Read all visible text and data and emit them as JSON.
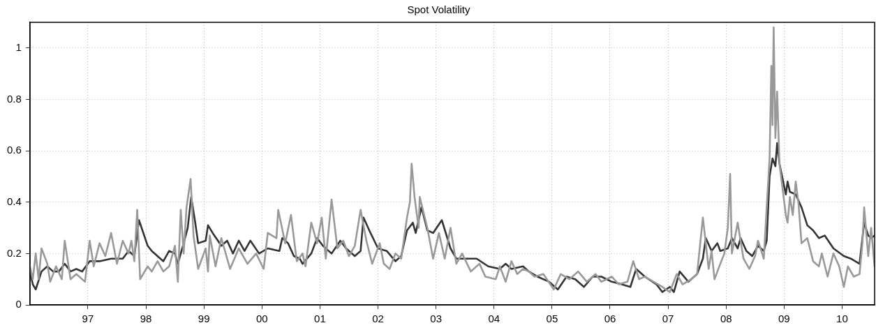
{
  "chart_data": {
    "type": "line",
    "title": "Spot Volatility",
    "xlim": [
      1996.0,
      2010.56
    ],
    "xticks": [
      {
        "value": 1997,
        "label": "97"
      },
      {
        "value": 1998,
        "label": "98"
      },
      {
        "value": 1999,
        "label": "99"
      },
      {
        "value": 2000,
        "label": "00"
      },
      {
        "value": 2001,
        "label": "01"
      },
      {
        "value": 2002,
        "label": "02"
      },
      {
        "value": 2003,
        "label": "03"
      },
      {
        "value": 2004,
        "label": "04"
      },
      {
        "value": 2005,
        "label": "05"
      },
      {
        "value": 2006,
        "label": "06"
      },
      {
        "value": 2007,
        "label": "07"
      },
      {
        "value": 2008,
        "label": "08"
      },
      {
        "value": 2009,
        "label": "09"
      },
      {
        "value": 2010,
        "label": "10"
      }
    ],
    "ylim": [
      0,
      1.1
    ],
    "yticks": [
      0,
      0.2,
      0.4,
      0.6,
      0.8,
      1
    ],
    "grid": true,
    "legend": false,
    "marker": "none",
    "line_style": "solid",
    "series": [
      {
        "color": "#999999",
        "x": [
          1996.0,
          1996.05,
          1996.1,
          1996.15,
          1996.2,
          1996.3,
          1996.35,
          1996.45,
          1996.55,
          1996.6,
          1996.7,
          1996.8,
          1996.95,
          1997.03,
          1997.1,
          1997.2,
          1997.3,
          1997.4,
          1997.5,
          1997.6,
          1997.7,
          1997.75,
          1997.8,
          1997.85,
          1997.9,
          1998.03,
          1998.1,
          1998.2,
          1998.3,
          1998.4,
          1998.5,
          1998.55,
          1998.6,
          1998.65,
          1998.7,
          1998.77,
          1998.82,
          1998.9,
          1999.03,
          1999.07,
          1999.1,
          1999.2,
          1999.3,
          1999.45,
          1999.6,
          1999.75,
          1999.9,
          2000.03,
          2000.1,
          2000.25,
          2000.28,
          2000.4,
          2000.5,
          2000.6,
          2000.7,
          2000.75,
          2000.85,
          2000.95,
          2001.03,
          2001.1,
          2001.2,
          2001.3,
          2001.4,
          2001.5,
          2001.6,
          2001.7,
          2001.8,
          2001.9,
          2002.03,
          2002.1,
          2002.2,
          2002.3,
          2002.4,
          2002.5,
          2002.55,
          2002.58,
          2002.63,
          2002.7,
          2002.72,
          2002.85,
          2002.95,
          2003.05,
          2003.15,
          2003.25,
          2003.35,
          2003.45,
          2003.6,
          2003.75,
          2003.85,
          2004.03,
          2004.1,
          2004.2,
          2004.3,
          2004.4,
          2004.5,
          2004.6,
          2004.7,
          2004.85,
          2005.03,
          2005.15,
          2005.3,
          2005.45,
          2005.6,
          2005.75,
          2005.85,
          2006.03,
          2006.15,
          2006.3,
          2006.4,
          2006.5,
          2006.6,
          2006.75,
          2006.9,
          2007.03,
          2007.15,
          2007.25,
          2007.4,
          2007.5,
          2007.6,
          2007.7,
          2007.75,
          2007.8,
          2007.9,
          2007.97,
          2008.03,
          2008.07,
          2008.1,
          2008.2,
          2008.3,
          2008.4,
          2008.5,
          2008.55,
          2008.65,
          2008.7,
          2008.75,
          2008.78,
          2008.8,
          2008.82,
          2008.85,
          2008.88,
          2008.92,
          2009.03,
          2009.06,
          2009.1,
          2009.15,
          2009.2,
          2009.25,
          2009.3,
          2009.4,
          2009.5,
          2009.6,
          2009.65,
          2009.75,
          2009.85,
          2009.95,
          2010.03,
          2010.1,
          2010.2,
          2010.3,
          2010.35,
          2010.38,
          2010.45,
          2010.5,
          2010.56
        ],
        "values": [
          0.15,
          0.1,
          0.2,
          0.1,
          0.22,
          0.16,
          0.09,
          0.15,
          0.1,
          0.25,
          0.1,
          0.12,
          0.09,
          0.25,
          0.15,
          0.24,
          0.19,
          0.28,
          0.16,
          0.25,
          0.2,
          0.25,
          0.17,
          0.37,
          0.1,
          0.15,
          0.13,
          0.17,
          0.13,
          0.15,
          0.23,
          0.09,
          0.37,
          0.2,
          0.38,
          0.49,
          0.27,
          0.14,
          0.22,
          0.13,
          0.27,
          0.15,
          0.26,
          0.14,
          0.22,
          0.16,
          0.2,
          0.14,
          0.28,
          0.26,
          0.37,
          0.24,
          0.35,
          0.17,
          0.2,
          0.15,
          0.32,
          0.24,
          0.34,
          0.18,
          0.41,
          0.22,
          0.25,
          0.19,
          0.23,
          0.37,
          0.25,
          0.16,
          0.24,
          0.16,
          0.14,
          0.2,
          0.18,
          0.34,
          0.4,
          0.55,
          0.42,
          0.3,
          0.42,
          0.3,
          0.18,
          0.28,
          0.18,
          0.3,
          0.16,
          0.2,
          0.13,
          0.16,
          0.11,
          0.1,
          0.15,
          0.09,
          0.17,
          0.12,
          0.14,
          0.13,
          0.11,
          0.12,
          0.06,
          0.12,
          0.1,
          0.13,
          0.09,
          0.12,
          0.09,
          0.11,
          0.08,
          0.09,
          0.17,
          0.1,
          0.11,
          0.09,
          0.07,
          0.05,
          0.12,
          0.08,
          0.1,
          0.12,
          0.34,
          0.14,
          0.21,
          0.1,
          0.16,
          0.2,
          0.3,
          0.51,
          0.2,
          0.32,
          0.18,
          0.14,
          0.19,
          0.25,
          0.18,
          0.38,
          0.57,
          0.93,
          0.7,
          1.08,
          0.65,
          0.83,
          0.55,
          0.35,
          0.32,
          0.42,
          0.35,
          0.48,
          0.39,
          0.24,
          0.26,
          0.17,
          0.15,
          0.2,
          0.11,
          0.2,
          0.15,
          0.07,
          0.15,
          0.11,
          0.12,
          0.24,
          0.38,
          0.19,
          0.3,
          0.15
        ]
      },
      {
        "color": "#333333",
        "x": [
          1996.0,
          1996.05,
          1996.1,
          1996.2,
          1996.3,
          1996.4,
          1996.5,
          1996.6,
          1996.7,
          1996.8,
          1996.9,
          1997.03,
          1997.2,
          1997.4,
          1997.6,
          1997.7,
          1997.8,
          1997.88,
          1998.03,
          1998.1,
          1998.3,
          1998.4,
          1998.5,
          1998.55,
          1998.65,
          1998.72,
          1998.78,
          1998.85,
          1998.9,
          1999.03,
          1999.07,
          1999.15,
          1999.3,
          1999.4,
          1999.5,
          1999.6,
          1999.7,
          1999.8,
          1999.95,
          2000.1,
          2000.3,
          2000.35,
          2000.45,
          2000.55,
          2000.65,
          2000.7,
          2000.85,
          2000.95,
          2001.05,
          2001.2,
          2001.35,
          2001.45,
          2001.6,
          2001.7,
          2001.75,
          2001.85,
          2002.0,
          2002.15,
          2002.3,
          2002.4,
          2002.5,
          2002.6,
          2002.65,
          2002.75,
          2002.85,
          2002.95,
          2003.1,
          2003.25,
          2003.35,
          2003.5,
          2003.7,
          2003.9,
          2004.1,
          2004.2,
          2004.3,
          2004.5,
          2004.6,
          2004.75,
          2004.95,
          2005.1,
          2005.25,
          2005.4,
          2005.55,
          2005.7,
          2005.85,
          2006.03,
          2006.2,
          2006.35,
          2006.45,
          2006.6,
          2006.8,
          2006.9,
          2007.03,
          2007.1,
          2007.2,
          2007.35,
          2007.5,
          2007.6,
          2007.65,
          2007.75,
          2007.85,
          2007.9,
          2008.03,
          2008.1,
          2008.2,
          2008.25,
          2008.35,
          2008.45,
          2008.55,
          2008.65,
          2008.7,
          2008.75,
          2008.8,
          2008.85,
          2008.88,
          2008.92,
          2009.03,
          2009.06,
          2009.1,
          2009.2,
          2009.3,
          2009.4,
          2009.5,
          2009.6,
          2009.7,
          2009.85,
          2010.03,
          2010.15,
          2010.3,
          2010.38,
          2010.45,
          2010.5,
          2010.56
        ],
        "values": [
          0.13,
          0.08,
          0.06,
          0.13,
          0.15,
          0.13,
          0.13,
          0.16,
          0.13,
          0.14,
          0.13,
          0.17,
          0.17,
          0.18,
          0.18,
          0.21,
          0.19,
          0.33,
          0.23,
          0.21,
          0.17,
          0.21,
          0.2,
          0.16,
          0.24,
          0.3,
          0.42,
          0.32,
          0.24,
          0.25,
          0.31,
          0.28,
          0.23,
          0.25,
          0.2,
          0.25,
          0.21,
          0.25,
          0.2,
          0.22,
          0.21,
          0.26,
          0.24,
          0.19,
          0.18,
          0.16,
          0.2,
          0.26,
          0.23,
          0.2,
          0.25,
          0.22,
          0.19,
          0.21,
          0.34,
          0.29,
          0.22,
          0.21,
          0.17,
          0.19,
          0.29,
          0.32,
          0.28,
          0.38,
          0.29,
          0.28,
          0.33,
          0.22,
          0.18,
          0.18,
          0.18,
          0.15,
          0.14,
          0.16,
          0.14,
          0.15,
          0.13,
          0.11,
          0.09,
          0.06,
          0.11,
          0.1,
          0.07,
          0.11,
          0.11,
          0.09,
          0.08,
          0.07,
          0.14,
          0.11,
          0.08,
          0.05,
          0.07,
          0.05,
          0.13,
          0.09,
          0.12,
          0.18,
          0.26,
          0.21,
          0.24,
          0.21,
          0.22,
          0.26,
          0.22,
          0.26,
          0.21,
          0.19,
          0.23,
          0.21,
          0.25,
          0.5,
          0.57,
          0.54,
          0.63,
          0.55,
          0.43,
          0.48,
          0.44,
          0.43,
          0.38,
          0.31,
          0.29,
          0.26,
          0.27,
          0.22,
          0.19,
          0.18,
          0.16,
          0.32,
          0.27,
          0.26,
          0.27
        ]
      }
    ]
  }
}
